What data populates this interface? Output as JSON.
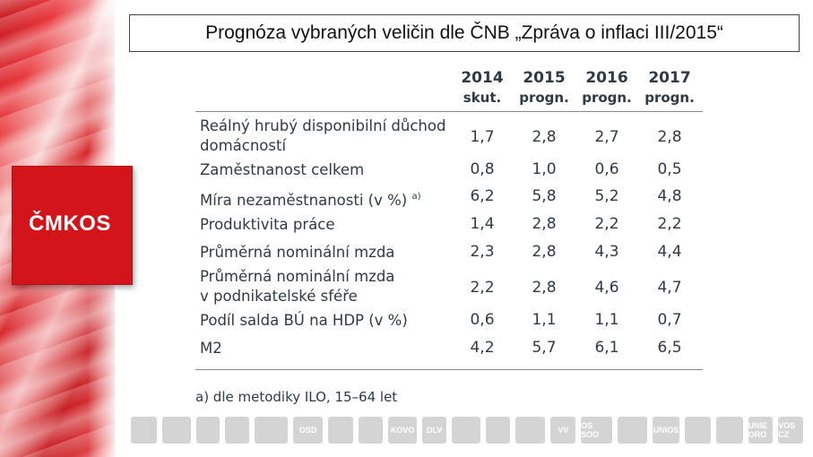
{
  "slide": {
    "title": "Prognóza vybraných veličin dle ČNB „Zpráva o inflaci III/2015“",
    "logo_text": "ČMKOS"
  },
  "table": {
    "columns": [
      {
        "year": "2014",
        "sub": "skut."
      },
      {
        "year": "2015",
        "sub": "progn."
      },
      {
        "year": "2016",
        "sub": "progn."
      },
      {
        "year": "2017",
        "sub": "progn."
      }
    ],
    "rows": [
      {
        "label_line1": "Reálný hrubý disponibilní důchod",
        "label_line2": "domácností",
        "values": [
          "1,7",
          "2,8",
          "2,7",
          "2,8"
        ]
      },
      {
        "label_line1": "Zaměstnanost celkem",
        "label_line2": "",
        "values": [
          "0,8",
          "1,0",
          "0,6",
          "0,5"
        ]
      },
      {
        "label_line1": "Míra nezaměstnanosti (v %)",
        "label_sup": "a)",
        "label_line2": "",
        "values": [
          "6,2",
          "5,8",
          "5,2",
          "4,8"
        ]
      },
      {
        "label_line1": "Produktivita práce",
        "label_line2": "",
        "values": [
          "1,4",
          "2,8",
          "2,2",
          "2,2"
        ]
      },
      {
        "label_line1": "Průměrná nominální mzda",
        "label_line2": "",
        "values": [
          "2,3",
          "2,8",
          "4,3",
          "4,4"
        ]
      },
      {
        "label_line1": "Průměrná nominální mzda",
        "label_line2": "v podnikatelské sféře",
        "values": [
          "2,2",
          "2,8",
          "4,6",
          "4,7"
        ]
      },
      {
        "label_line1": "Podíl salda BÚ na HDP (v %)",
        "label_line2": "",
        "values": [
          "0,6",
          "1,1",
          "1,1",
          "0,7"
        ]
      },
      {
        "label_line1": "M2",
        "label_line2": "",
        "values": [
          "4,2",
          "5,7",
          "6,1",
          "6,5"
        ]
      }
    ],
    "footnote": "a) dle metodiky ILO, 15–64 let"
  },
  "partners": [
    "OSD",
    "KOVO",
    "DLV",
    "VV",
    "OS SOO",
    "UNIOS",
    "UNIE ORO",
    "VOS CZ"
  ]
}
